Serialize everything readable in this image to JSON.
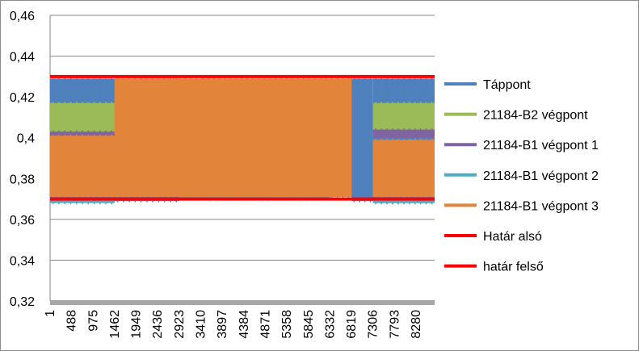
{
  "chart_data": {
    "type": "area",
    "title": "",
    "xlabel": "",
    "ylabel": "",
    "ylim": [
      0.32,
      0.46
    ],
    "y_ticks": [
      "0,32",
      "0,34",
      "0,36",
      "0,38",
      "0,4",
      "0,42",
      "0,44",
      "0,46"
    ],
    "y_tick_values": [
      0.32,
      0.34,
      0.36,
      0.38,
      0.4,
      0.42,
      0.44,
      0.46
    ],
    "x_range": [
      1,
      8700
    ],
    "x_ticks": [
      "1",
      "488",
      "975",
      "1462",
      "1949",
      "2436",
      "2923",
      "3410",
      "3897",
      "4384",
      "4871",
      "5358",
      "5845",
      "6332",
      "6819",
      "7306",
      "7793",
      "8280"
    ],
    "x_tick_values": [
      1,
      488,
      975,
      1462,
      1949,
      2436,
      2923,
      3410,
      3897,
      4384,
      4871,
      5358,
      5845,
      6332,
      6819,
      7306,
      7793,
      8280
    ],
    "grid": "horizontal",
    "legend_position": "right",
    "series": [
      {
        "name": "Táppont",
        "color": "#4f81bd",
        "kind": "band",
        "segments": [
          {
            "x": [
              1,
              1462
            ],
            "low": 0.369,
            "high": 0.429
          },
          {
            "x": [
              1462,
              2923
            ],
            "low": 0.369,
            "high": 0.429
          },
          {
            "x": [
              3410,
              3897
            ],
            "low": 0.371,
            "high": 0.429
          },
          {
            "x": [
              6819,
              7306
            ],
            "low": 0.369,
            "high": 0.429
          },
          {
            "x": [
              7306,
              8700
            ],
            "low": 0.368,
            "high": 0.429
          }
        ]
      },
      {
        "name": "21184-B2 végpont",
        "color": "#9bbb59",
        "kind": "band",
        "segments": [
          {
            "x": [
              1,
              1462
            ],
            "low": 0.401,
            "high": 0.417
          },
          {
            "x": [
              7306,
              8700
            ],
            "low": 0.401,
            "high": 0.417
          }
        ]
      },
      {
        "name": "21184-B1 végpont 1",
        "color": "#8064a2",
        "kind": "band",
        "segments": [
          {
            "x": [
              1,
              1462
            ],
            "low": 0.4,
            "high": 0.403
          },
          {
            "x": [
              7306,
              8700
            ],
            "low": 0.4,
            "high": 0.404
          }
        ]
      },
      {
        "name": "21184-B1 végpont 2",
        "color": "#4bacc6",
        "kind": "band",
        "segments": [
          {
            "x": [
              1,
              1462
            ],
            "low": 0.368,
            "high": 0.37
          },
          {
            "x": [
              2923,
              6332
            ],
            "low": 0.37,
            "high": 0.374
          },
          {
            "x": [
              7306,
              8700
            ],
            "low": 0.368,
            "high": 0.37
          }
        ]
      },
      {
        "name": "21184-B1 végpont 3",
        "color": "#e3843b",
        "kind": "band",
        "segments": [
          {
            "x": [
              1,
              1462
            ],
            "low": 0.371,
            "high": 0.401
          },
          {
            "x": [
              1462,
              6819
            ],
            "low": 0.371,
            "high": 0.429
          },
          {
            "x": [
              7306,
              8700
            ],
            "low": 0.371,
            "high": 0.399
          }
        ]
      },
      {
        "name": "Határ alsó",
        "color": "#ff0000",
        "kind": "hline",
        "value": 0.37
      },
      {
        "name": "határ felső",
        "color": "#ff0000",
        "kind": "hline",
        "value": 0.43
      }
    ]
  }
}
